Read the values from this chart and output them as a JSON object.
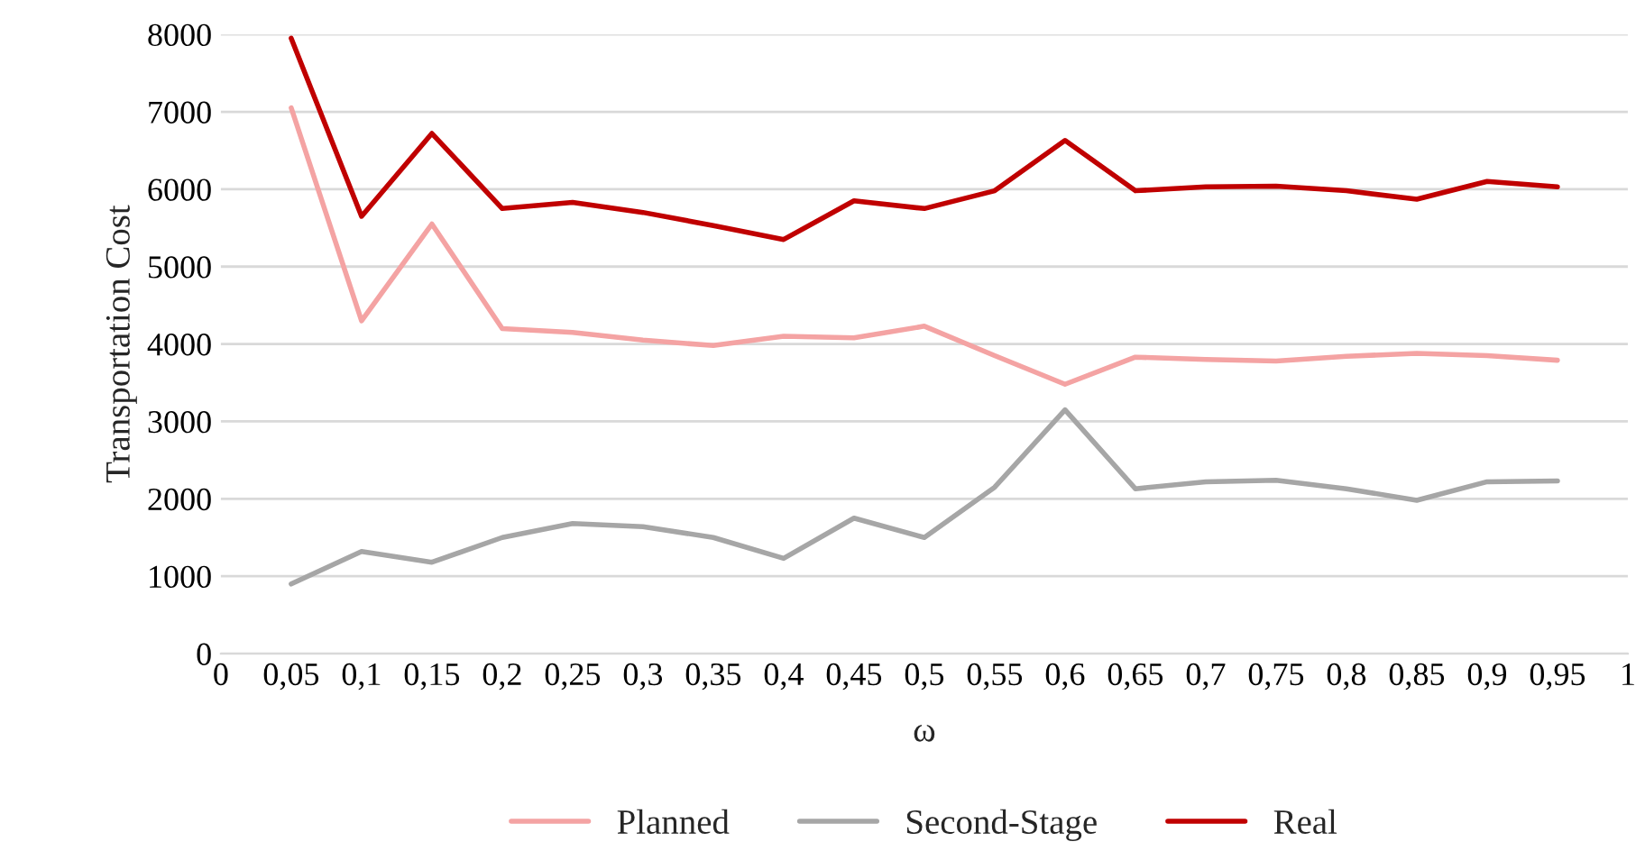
{
  "chart_data": {
    "type": "line",
    "xlabel": "ω",
    "ylabel": "Transportation Cost",
    "x": [
      0.05,
      0.1,
      0.15,
      0.2,
      0.25,
      0.3,
      0.35,
      0.4,
      0.45,
      0.5,
      0.55,
      0.6,
      0.65,
      0.7,
      0.75,
      0.8,
      0.85,
      0.9,
      0.95
    ],
    "series": [
      {
        "name": "Planned",
        "color": "#f4a3a3",
        "values": [
          7050,
          4300,
          5550,
          4200,
          4150,
          4050,
          3980,
          4100,
          4080,
          4230,
          3850,
          3480,
          3830,
          3800,
          3780,
          3840,
          3880,
          3850,
          3790
        ]
      },
      {
        "name": "Second-Stage",
        "color": "#a6a6a6",
        "values": [
          900,
          1320,
          1180,
          1500,
          1680,
          1640,
          1500,
          1230,
          1750,
          1500,
          2150,
          3150,
          2130,
          2220,
          2240,
          2130,
          1980,
          2220,
          2230
        ]
      },
      {
        "name": "Real",
        "color": "#c00000",
        "values": [
          7950,
          5650,
          6720,
          5750,
          5830,
          5700,
          5530,
          5350,
          5850,
          5750,
          5980,
          6630,
          5980,
          6030,
          6040,
          5980,
          5870,
          6100,
          6030
        ]
      }
    ],
    "xlim": [
      0,
      1
    ],
    "xticks": [
      0,
      {
        "value": 0.05,
        "label": "0,05"
      },
      {
        "value": 0.1,
        "label": "0,1"
      },
      {
        "value": 0.15,
        "label": "0,15"
      },
      {
        "value": 0.2,
        "label": "0,2"
      },
      {
        "value": 0.25,
        "label": "0,25"
      },
      {
        "value": 0.3,
        "label": "0,3"
      },
      {
        "value": 0.35,
        "label": "0,35"
      },
      {
        "value": 0.4,
        "label": "0,4"
      },
      {
        "value": 0.45,
        "label": "0,45"
      },
      {
        "value": 0.5,
        "label": "0,5"
      },
      {
        "value": 0.55,
        "label": "0,55"
      },
      {
        "value": 0.6,
        "label": "0,6"
      },
      {
        "value": 0.65,
        "label": "0,65"
      },
      {
        "value": 0.7,
        "label": "0,7"
      },
      {
        "value": 0.75,
        "label": "0,75"
      },
      {
        "value": 0.8,
        "label": "0,8"
      },
      {
        "value": 0.85,
        "label": "0,85"
      },
      {
        "value": 0.9,
        "label": "0,9"
      },
      {
        "value": 0.95,
        "label": "0,95"
      },
      1
    ],
    "ylim": [
      0,
      8000
    ],
    "yticks": [
      0,
      1000,
      2000,
      3000,
      4000,
      5000,
      6000,
      7000,
      8000
    ],
    "grid": "y",
    "legend": "bottom",
    "marker": "none",
    "line_style": "solid"
  }
}
